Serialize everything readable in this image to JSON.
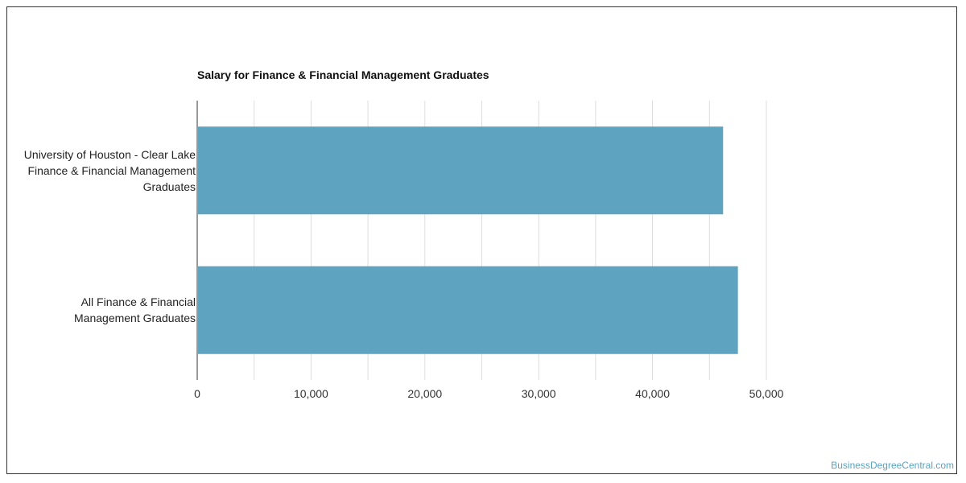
{
  "chart_data": {
    "type": "bar",
    "orientation": "horizontal",
    "title": "Salary for Finance & Financial Management Graduates",
    "categories": [
      [
        "University of Houston - Clear Lake",
        "Finance & Financial Management",
        "Graduates"
      ],
      [
        "All Finance & Financial",
        "Management Graduates"
      ]
    ],
    "values": [
      46200,
      47500
    ],
    "xlim": [
      0,
      52500
    ],
    "xticks": [
      0,
      10000,
      20000,
      30000,
      40000,
      50000
    ],
    "xtick_labels": [
      "0",
      "10,000",
      "20,000",
      "30,000",
      "40,000",
      "50,000"
    ],
    "grid": true,
    "bar_color": "#5ea3bf"
  },
  "source_label": "BusinessDegreeCentral.com"
}
